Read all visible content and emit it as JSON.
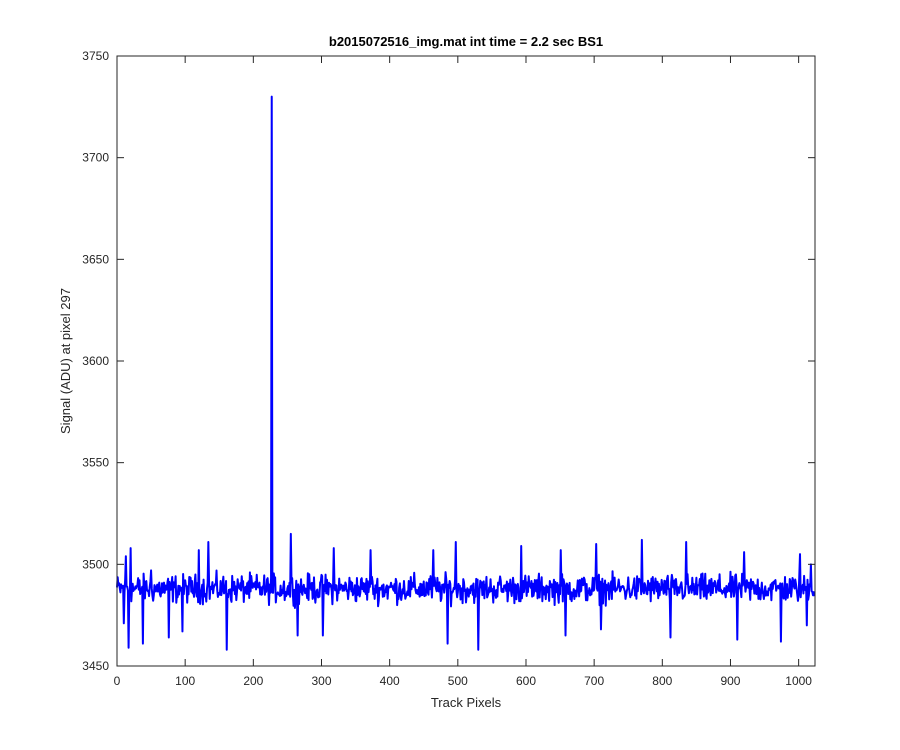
{
  "chart_data": {
    "type": "line",
    "title": "b2015072516_img.mat int time = 2.2 sec   BS1",
    "xlabel": "Track Pixels",
    "ylabel": "Signal (ADU) at pixel 297",
    "xlim": [
      0,
      1024
    ],
    "ylim": [
      3450,
      3750
    ],
    "xticks": [
      0,
      100,
      200,
      300,
      400,
      500,
      600,
      700,
      800,
      900,
      1000
    ],
    "xtick_labels": [
      "0",
      "100",
      "200",
      "300",
      "400",
      "500",
      "600",
      "700",
      "800",
      "900",
      "1000"
    ],
    "yticks": [
      3450,
      3500,
      3550,
      3600,
      3650,
      3700,
      3750
    ],
    "ytick_labels": [
      "3450",
      "3500",
      "3550",
      "3600",
      "3650",
      "3700",
      "3750"
    ],
    "grid": false,
    "box": true,
    "series": [
      {
        "color": "#0000ff",
        "noise_center": 3488,
        "noise_amplitude": 10,
        "x_count": 1024,
        "features": [
          {
            "x": 10,
            "y": 3471
          },
          {
            "x": 13,
            "y": 3504
          },
          {
            "x": 17,
            "y": 3459
          },
          {
            "x": 20,
            "y": 3508
          },
          {
            "x": 38,
            "y": 3461
          },
          {
            "x": 50,
            "y": 3497
          },
          {
            "x": 76,
            "y": 3464
          },
          {
            "x": 96,
            "y": 3467
          },
          {
            "x": 120,
            "y": 3507
          },
          {
            "x": 134,
            "y": 3511
          },
          {
            "x": 161,
            "y": 3458
          },
          {
            "x": 225,
            "y": 3486
          },
          {
            "x": 227,
            "y": 3730
          },
          {
            "x": 229,
            "y": 3486
          },
          {
            "x": 255,
            "y": 3515
          },
          {
            "x": 265,
            "y": 3465
          },
          {
            "x": 302,
            "y": 3465
          },
          {
            "x": 318,
            "y": 3508
          },
          {
            "x": 372,
            "y": 3507
          },
          {
            "x": 464,
            "y": 3507
          },
          {
            "x": 485,
            "y": 3461
          },
          {
            "x": 497,
            "y": 3511
          },
          {
            "x": 530,
            "y": 3458
          },
          {
            "x": 593,
            "y": 3509
          },
          {
            "x": 651,
            "y": 3507
          },
          {
            "x": 658,
            "y": 3465
          },
          {
            "x": 703,
            "y": 3510
          },
          {
            "x": 710,
            "y": 3468
          },
          {
            "x": 770,
            "y": 3512
          },
          {
            "x": 812,
            "y": 3464
          },
          {
            "x": 835,
            "y": 3511
          },
          {
            "x": 910,
            "y": 3463
          },
          {
            "x": 920,
            "y": 3506
          },
          {
            "x": 974,
            "y": 3462
          },
          {
            "x": 1002,
            "y": 3505
          },
          {
            "x": 1012,
            "y": 3470
          },
          {
            "x": 1018,
            "y": 3500
          }
        ]
      }
    ]
  }
}
